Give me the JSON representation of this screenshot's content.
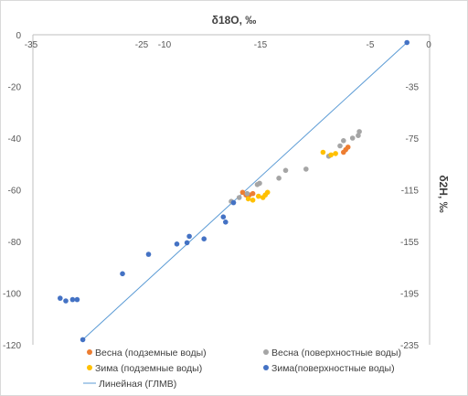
{
  "chart_data": {
    "type": "scatter",
    "title": "δ18O, ‰",
    "xlabel": "δ18O, ‰",
    "ylabel": "δ2H, ‰",
    "grid": false,
    "legend_position": "bottom",
    "left_axis": {
      "min": -120,
      "max": 0,
      "ticks": [
        "0",
        "-20",
        "-40",
        "-60",
        "-80",
        "-100",
        "-120"
      ]
    },
    "right_axis": {
      "min": -235,
      "max": 5,
      "ticks": [
        "-35",
        "-75",
        "-115",
        "-155",
        "-195",
        "-235"
      ]
    },
    "top_axis": {
      "min": -35,
      "max": 0,
      "ticks": [
        "-35",
        "-25",
        "-10",
        "-15",
        "-5",
        "0"
      ]
    },
    "series": [
      {
        "name": "Весна (подземные воды)",
        "color": "#ed7d31",
        "points": [
          [
            -16.5,
            -61
          ],
          [
            -16.2,
            -62
          ],
          [
            -15.9,
            -62
          ],
          [
            -15.6,
            -61.5
          ],
          [
            -7.6,
            -45.5
          ],
          [
            -7.4,
            -44.5
          ],
          [
            -7.2,
            -43.5
          ]
        ]
      },
      {
        "name": "Весна (поверхностные воды)",
        "color": "#a5a5a5",
        "points": [
          [
            -6.2,
            -37.5
          ],
          [
            -6.3,
            -39
          ],
          [
            -6.8,
            -40
          ],
          [
            -7.6,
            -41
          ],
          [
            -7.9,
            -43
          ],
          [
            -8.9,
            -47
          ],
          [
            -10.9,
            -52
          ],
          [
            -12.7,
            -52.5
          ],
          [
            -13.3,
            -55.5
          ],
          [
            -15.0,
            -57.5
          ],
          [
            -15.2,
            -58
          ],
          [
            -16.1,
            -61.5
          ],
          [
            -16.8,
            -63
          ],
          [
            -17.5,
            -64.5
          ]
        ]
      },
      {
        "name": "Зима (подземные воды)",
        "color": "#ffc000",
        "points": [
          [
            -8.3,
            -46
          ],
          [
            -8.7,
            -46.5
          ],
          [
            -9.4,
            -45.5
          ],
          [
            -16.0,
            -63.5
          ],
          [
            -15.6,
            -64
          ],
          [
            -15.1,
            -62.5
          ],
          [
            -14.5,
            -62
          ],
          [
            -14.3,
            -61
          ],
          [
            -14.7,
            -63
          ]
        ]
      },
      {
        "name": "Зима(поверхностные воды)",
        "color": "#4472c4",
        "points": [
          [
            -2.0,
            -3
          ],
          [
            -17.3,
            -65
          ],
          [
            -18.2,
            -70.5
          ],
          [
            -18.0,
            -72.5
          ],
          [
            -19.9,
            -79
          ],
          [
            -21.2,
            -78
          ],
          [
            -21.4,
            -80.5
          ],
          [
            -22.3,
            -81
          ],
          [
            -24.8,
            -85
          ],
          [
            -27.1,
            -92.5
          ],
          [
            -32.6,
            -102
          ],
          [
            -32.1,
            -103
          ],
          [
            -31.5,
            -102.5
          ],
          [
            -31.1,
            -102.5
          ],
          [
            -30.6,
            -118
          ]
        ]
      }
    ],
    "line": {
      "name": "Линейная (ГЛМВ)",
      "color": "#5b9bd5",
      "points": [
        [
          -30.6,
          -118
        ],
        [
          -2.0,
          -3
        ]
      ]
    }
  },
  "legend": {
    "items": [
      {
        "label": "Весна (подземные воды)",
        "color": "#ed7d31",
        "kind": "marker"
      },
      {
        "label": "Весна (поверхностные воды)",
        "color": "#a5a5a5",
        "kind": "marker"
      },
      {
        "label": "Зима (подземные воды)",
        "color": "#ffc000",
        "kind": "marker"
      },
      {
        "label": "Зима(поверхностные воды)",
        "color": "#4472c4",
        "kind": "marker"
      },
      {
        "label": "Линейная (ГЛМВ)",
        "color": "#5b9bd5",
        "kind": "line"
      }
    ]
  }
}
